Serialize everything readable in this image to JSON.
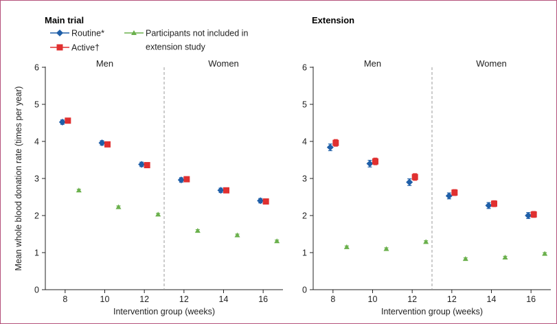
{
  "chart_data": [
    {
      "type": "scatter",
      "title": "Main trial",
      "xlabel": "Intervention group (weeks)",
      "ylabel": "Mean whole blood donation rate (times per year)",
      "ylim": [
        0,
        6
      ],
      "yticks": [
        0,
        1,
        2,
        3,
        4,
        5,
        6
      ],
      "groups": [
        {
          "label": "Men",
          "categories": [
            "8",
            "10",
            "12"
          ]
        },
        {
          "label": "Women",
          "categories": [
            "12",
            "14",
            "16"
          ]
        }
      ],
      "categories": [
        "8",
        "10",
        "12",
        "12",
        "14",
        "16"
      ],
      "legend": true,
      "grid": false,
      "series": [
        {
          "name": "Routine*",
          "color": "#1f5fa8",
          "marker": "diamond",
          "values": [
            4.52,
            3.96,
            3.38,
            2.96,
            2.68,
            2.4
          ],
          "err": [
            0.06,
            0.06,
            0.06,
            0.06,
            0.06,
            0.06
          ]
        },
        {
          "name": "Active†",
          "color": "#e03030",
          "marker": "square",
          "values": [
            4.56,
            3.92,
            3.36,
            2.98,
            2.68,
            2.38
          ],
          "err": [
            0.06,
            0.06,
            0.06,
            0.06,
            0.06,
            0.06
          ]
        },
        {
          "name": "Participants not included in extension study",
          "color": "#6ab04c",
          "marker": "triangle",
          "values": [
            2.68,
            2.23,
            2.03,
            1.59,
            1.47,
            1.31
          ],
          "err": [
            0.03,
            0.03,
            0.03,
            0.03,
            0.03,
            0.03
          ]
        }
      ]
    },
    {
      "type": "scatter",
      "title": "Extension",
      "xlabel": "Intervention group (weeks)",
      "ylabel": "",
      "ylim": [
        0,
        6
      ],
      "yticks": [
        0,
        1,
        2,
        3,
        4,
        5,
        6
      ],
      "groups": [
        {
          "label": "Men",
          "categories": [
            "8",
            "10",
            "12"
          ]
        },
        {
          "label": "Women",
          "categories": [
            "12",
            "14",
            "16"
          ]
        }
      ],
      "categories": [
        "8",
        "10",
        "12",
        "12",
        "14",
        "16"
      ],
      "legend": false,
      "grid": false,
      "series": [
        {
          "name": "Routine*",
          "color": "#1f5fa8",
          "marker": "diamond",
          "values": [
            3.84,
            3.4,
            2.9,
            2.53,
            2.27,
            2.0
          ],
          "err": [
            0.09,
            0.09,
            0.09,
            0.08,
            0.08,
            0.08
          ]
        },
        {
          "name": "Active†",
          "color": "#e03030",
          "marker": "square",
          "values": [
            3.96,
            3.46,
            3.04,
            2.62,
            2.32,
            2.03
          ],
          "err": [
            0.09,
            0.09,
            0.09,
            0.08,
            0.08,
            0.08
          ]
        },
        {
          "name": "Participants not included in extension study",
          "color": "#6ab04c",
          "marker": "triangle",
          "values": [
            1.15,
            1.1,
            1.29,
            0.83,
            0.87,
            0.97
          ],
          "err": [
            0.03,
            0.03,
            0.03,
            0.03,
            0.03,
            0.03
          ]
        }
      ]
    }
  ]
}
